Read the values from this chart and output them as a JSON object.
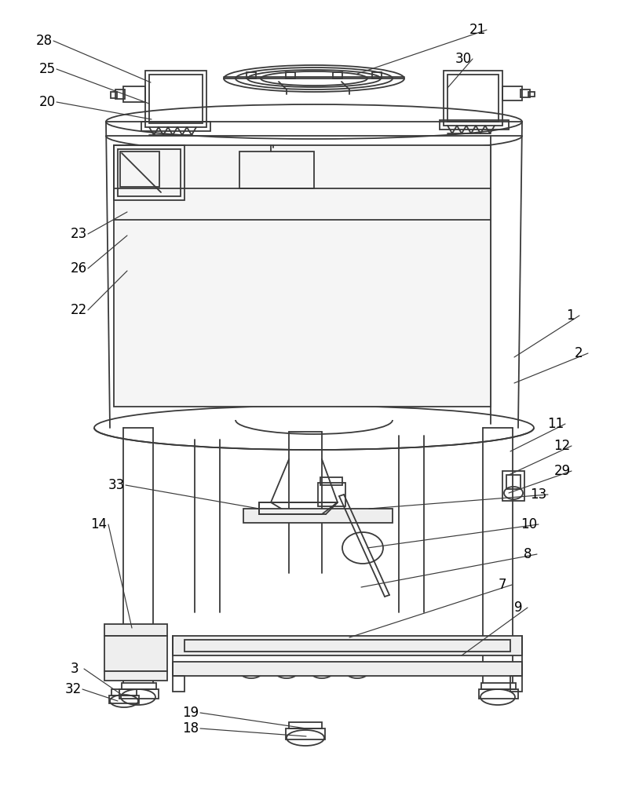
{
  "bg_color": "#ffffff",
  "lc": "#3a3a3a",
  "lw": 1.3,
  "fig_w": 7.91,
  "fig_h": 10.0
}
